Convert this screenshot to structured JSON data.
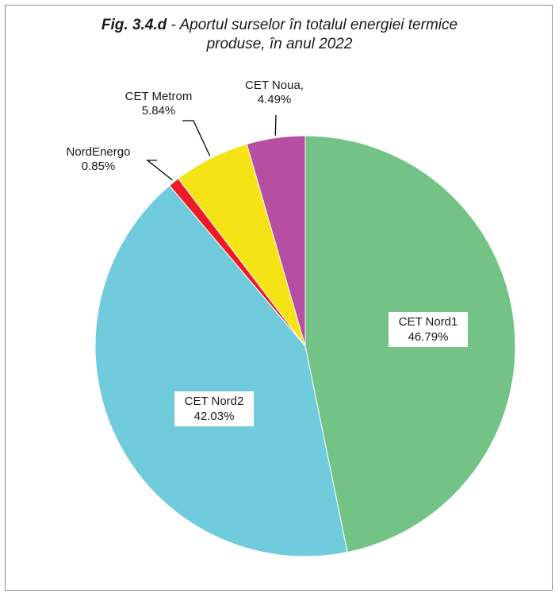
{
  "chart_data": {
    "type": "pie",
    "title_prefix": "Fig. 3.4.d",
    "title_rest_line1": " - Aportul surselor în totalul energiei termice",
    "title_line2": "produse, în anul 2022",
    "slices": [
      {
        "name": "CET Nord1",
        "value": 46.79,
        "label": "46.79%",
        "color": "#73c386"
      },
      {
        "name": "CET Nord2",
        "value": 42.03,
        "label": "42.03%",
        "color": "#70ccdc"
      },
      {
        "name": "NordEnergo",
        "value": 0.85,
        "label": "0.85%",
        "color": "#ed1c24"
      },
      {
        "name": "CET Metrom",
        "value": 5.84,
        "label": "5.84%",
        "color": "#f6e316"
      },
      {
        "name": "CET Noua,",
        "value": 4.49,
        "label": "4.49%",
        "color": "#b64fa1"
      }
    ]
  }
}
